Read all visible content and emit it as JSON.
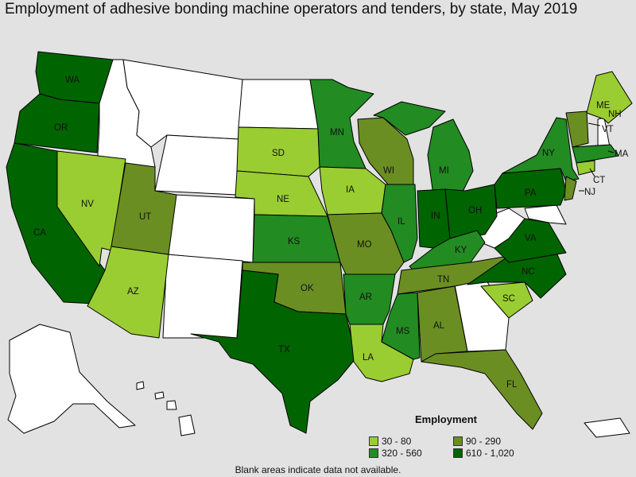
{
  "title": "Employment of adhesive bonding machine operators and tenders, by state, May 2019",
  "legend": {
    "title": "Employment",
    "bins": [
      {
        "label": "30 - 80",
        "color": "#9acd32"
      },
      {
        "label": "90 - 290",
        "color": "#6b8e23"
      },
      {
        "label": "320 - 560",
        "color": "#228b22"
      },
      {
        "label": "610 - 1,020",
        "color": "#006400"
      }
    ]
  },
  "footnote": "Blank areas indicate data not available.",
  "no_data_color": "#ffffff",
  "states": [
    {
      "abbr": "WA",
      "bin": 3
    },
    {
      "abbr": "OR",
      "bin": 3
    },
    {
      "abbr": "CA",
      "bin": 3
    },
    {
      "abbr": "NV",
      "bin": 0
    },
    {
      "abbr": "AZ",
      "bin": 0
    },
    {
      "abbr": "UT",
      "bin": 1
    },
    {
      "abbr": "SD",
      "bin": 0
    },
    {
      "abbr": "NE",
      "bin": 0
    },
    {
      "abbr": "KS",
      "bin": 2
    },
    {
      "abbr": "OK",
      "bin": 1
    },
    {
      "abbr": "TX",
      "bin": 3
    },
    {
      "abbr": "MN",
      "bin": 2
    },
    {
      "abbr": "IA",
      "bin": 0
    },
    {
      "abbr": "MO",
      "bin": 1
    },
    {
      "abbr": "AR",
      "bin": 2
    },
    {
      "abbr": "LA",
      "bin": 0
    },
    {
      "abbr": "WI",
      "bin": 1
    },
    {
      "abbr": "IL",
      "bin": 2
    },
    {
      "abbr": "MS",
      "bin": 2
    },
    {
      "abbr": "MI",
      "bin": 2
    },
    {
      "abbr": "IN",
      "bin": 3
    },
    {
      "abbr": "KY",
      "bin": 2
    },
    {
      "abbr": "TN",
      "bin": 1
    },
    {
      "abbr": "AL",
      "bin": 1
    },
    {
      "abbr": "OH",
      "bin": 3
    },
    {
      "abbr": "FL",
      "bin": 1
    },
    {
      "abbr": "SC",
      "bin": 0
    },
    {
      "abbr": "NC",
      "bin": 3
    },
    {
      "abbr": "VA",
      "bin": 3
    },
    {
      "abbr": "PA",
      "bin": 3
    },
    {
      "abbr": "NY",
      "bin": 2
    },
    {
      "abbr": "ME",
      "bin": 0
    },
    {
      "abbr": "VT",
      "bin": 1
    },
    {
      "abbr": "NH",
      "bin": null
    },
    {
      "abbr": "MA",
      "bin": 2
    },
    {
      "abbr": "CT",
      "bin": 0
    },
    {
      "abbr": "NJ",
      "bin": 1
    }
  ]
}
